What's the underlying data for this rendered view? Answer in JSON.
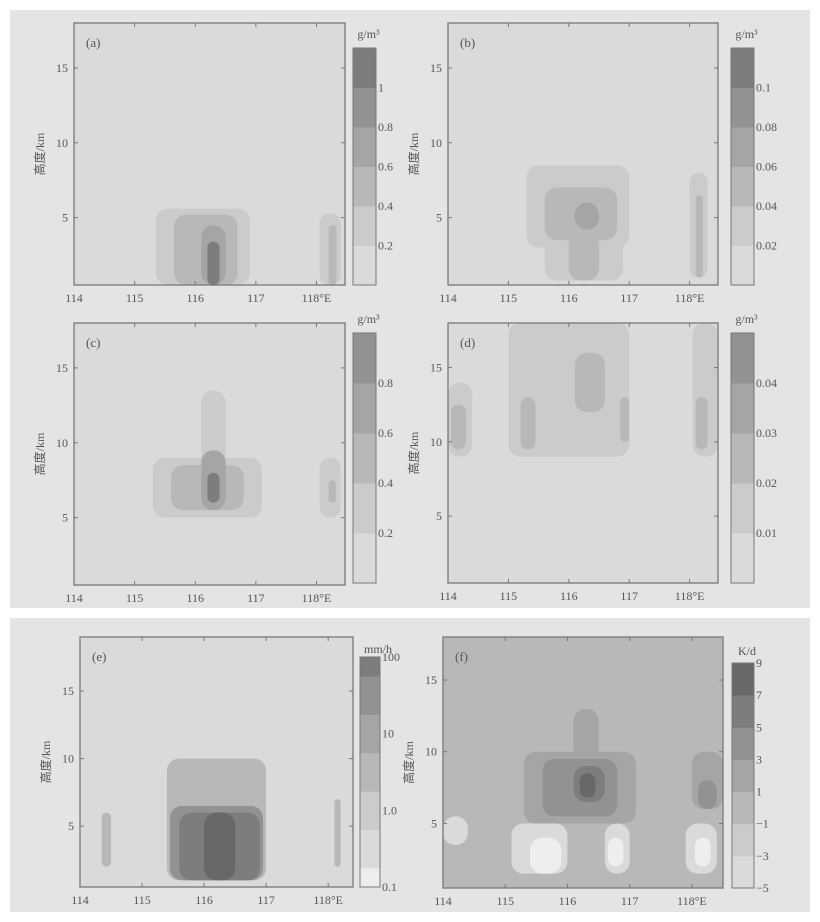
{
  "chart_data": [
    {
      "type": "heatmap",
      "panel_label": "(a)",
      "ylabel": "高度/km",
      "unit": "g/m³",
      "xticks": [
        "114",
        "115",
        "116",
        "117",
        "118°E"
      ],
      "yticks": [
        "5",
        "10",
        "15"
      ],
      "xlim": [
        114,
        118.47
      ],
      "ylim": [
        0.5,
        18
      ],
      "colorbar": {
        "ticks": [
          "0.2",
          "0.4",
          "0.6",
          "0.8",
          "1"
        ],
        "bands": 6
      },
      "regions": [
        [
          115.35,
          116.9,
          0.5,
          5.6,
          1
        ],
        [
          115.65,
          116.7,
          0.5,
          5.2,
          2
        ],
        [
          116.1,
          116.5,
          0.5,
          4.5,
          3
        ],
        [
          116.2,
          116.4,
          0.5,
          3.4,
          5
        ],
        [
          118.05,
          118.4,
          0.5,
          5.3,
          1
        ],
        [
          118.2,
          118.33,
          0.5,
          4.5,
          2
        ]
      ]
    },
    {
      "type": "heatmap",
      "panel_label": "(b)",
      "ylabel": "高度/km",
      "unit": "g/m³",
      "xticks": [
        "114",
        "115",
        "116",
        "117",
        "118°E"
      ],
      "yticks": [
        "5",
        "10",
        "15"
      ],
      "xlim": [
        114,
        118.47
      ],
      "ylim": [
        0.5,
        18
      ],
      "colorbar": {
        "ticks": [
          "0.02",
          "0.04",
          "0.06",
          "0.08",
          "0.1"
        ],
        "bands": 6
      },
      "regions": [
        [
          115.3,
          117.0,
          3,
          8.5,
          1
        ],
        [
          115.6,
          116.9,
          0.8,
          4,
          1
        ],
        [
          115.6,
          116.8,
          3.5,
          7,
          2
        ],
        [
          116.0,
          116.5,
          0.8,
          4,
          2
        ],
        [
          116.1,
          116.5,
          4.2,
          6,
          3
        ],
        [
          118.0,
          118.3,
          1,
          8,
          1
        ],
        [
          118.1,
          118.22,
          1,
          6.5,
          2
        ]
      ]
    },
    {
      "type": "heatmap",
      "panel_label": "(c)",
      "ylabel": "高度/km",
      "unit": "g/m³",
      "xticks": [
        "114",
        "115",
        "116",
        "117",
        "118°E"
      ],
      "yticks": [
        "5",
        "10",
        "15"
      ],
      "xlim": [
        114,
        118.47
      ],
      "ylim": [
        0.5,
        18
      ],
      "colorbar": {
        "ticks": [
          "0.2",
          "0.4",
          "0.6",
          "0.8"
        ],
        "bands": 5
      },
      "regions": [
        [
          115.3,
          117.1,
          5,
          9,
          1
        ],
        [
          116.1,
          116.5,
          5,
          13.5,
          1
        ],
        [
          115.6,
          116.8,
          5.5,
          8.5,
          2
        ],
        [
          116.1,
          116.5,
          5.5,
          9.5,
          3
        ],
        [
          116.2,
          116.4,
          6,
          8,
          5
        ],
        [
          118.05,
          118.4,
          5,
          9,
          1
        ],
        [
          118.2,
          118.32,
          6,
          7.5,
          2
        ]
      ]
    },
    {
      "type": "heatmap",
      "panel_label": "(d)",
      "ylabel": "高度/km",
      "unit": "g/m³",
      "xticks": [
        "114",
        "115",
        "116",
        "117",
        "118°E"
      ],
      "yticks": [
        "5",
        "10",
        "15"
      ],
      "xlim": [
        114,
        118.47
      ],
      "ylim": [
        0.5,
        18
      ],
      "colorbar": {
        "ticks": [
          "0.01",
          "0.02",
          "0.03",
          "0.04"
        ],
        "bands": 5
      },
      "regions": [
        [
          114,
          114.4,
          9,
          14,
          1
        ],
        [
          115.0,
          117.0,
          9,
          18,
          1
        ],
        [
          118.05,
          118.47,
          9,
          18,
          1
        ],
        [
          114.05,
          114.3,
          9.5,
          12.5,
          2
        ],
        [
          115.2,
          115.45,
          9.5,
          13,
          2
        ],
        [
          116.1,
          116.6,
          12,
          16,
          2
        ],
        [
          116.85,
          117,
          10,
          13,
          2
        ],
        [
          118.1,
          118.3,
          9.5,
          13,
          2
        ]
      ]
    },
    {
      "type": "heatmap",
      "panel_label": "(e)",
      "ylabel": "高度/km",
      "unit": "mm/h",
      "xticks": [
        "114",
        "115",
        "116",
        "117",
        "118°E"
      ],
      "yticks": [
        "5",
        "10",
        "15"
      ],
      "xlim": [
        114,
        118.4
      ],
      "ylim": [
        0.5,
        19
      ],
      "colorbar": {
        "ticks": [
          "0.1",
          "1.0",
          "10",
          "100"
        ],
        "scale": "log",
        "bands": 12
      },
      "regions": [
        [
          114.35,
          114.5,
          2,
          6,
          2
        ],
        [
          115.4,
          117.0,
          1,
          10,
          2
        ],
        [
          115.45,
          116.95,
          1,
          6.5,
          4
        ],
        [
          115.6,
          116.9,
          1,
          6,
          5
        ],
        [
          116.0,
          116.5,
          1,
          6,
          6
        ],
        [
          118.1,
          118.2,
          2,
          7,
          2
        ]
      ]
    },
    {
      "type": "heatmap",
      "panel_label": "(f)",
      "ylabel": "高度/km",
      "unit": "K/d",
      "xticks": [
        "114",
        "115",
        "116",
        "117",
        "118°E"
      ],
      "yticks": [
        "5",
        "10",
        "15"
      ],
      "xlim": [
        114,
        118.5
      ],
      "ylim": [
        0.5,
        18
      ],
      "colorbar": {
        "ticks": [
          "9",
          "7",
          "5",
          "3",
          "1",
          "−1",
          "−3",
          "−5"
        ],
        "bands": 7
      },
      "regions": [
        [
          114,
          114.4,
          3.5,
          5.5,
          0
        ],
        [
          115.1,
          116,
          1.5,
          5,
          0
        ],
        [
          115.4,
          115.9,
          1.5,
          4,
          -1
        ],
        [
          116.6,
          117,
          1.5,
          5,
          0
        ],
        [
          116.65,
          116.9,
          2,
          4,
          -1
        ],
        [
          117.9,
          118.4,
          1.5,
          5,
          0
        ],
        [
          118.05,
          118.3,
          2,
          4,
          -1
        ],
        [
          115.3,
          117.1,
          5,
          10,
          3
        ],
        [
          116.1,
          116.5,
          5,
          13,
          3
        ],
        [
          115.6,
          116.8,
          5.5,
          9.5,
          4
        ],
        [
          116.1,
          116.6,
          6.5,
          9,
          5
        ],
        [
          116.2,
          116.45,
          6.8,
          8.5,
          6
        ],
        [
          118.0,
          118.5,
          6,
          10,
          3
        ],
        [
          118.1,
          118.4,
          6,
          8,
          4
        ]
      ]
    }
  ]
}
